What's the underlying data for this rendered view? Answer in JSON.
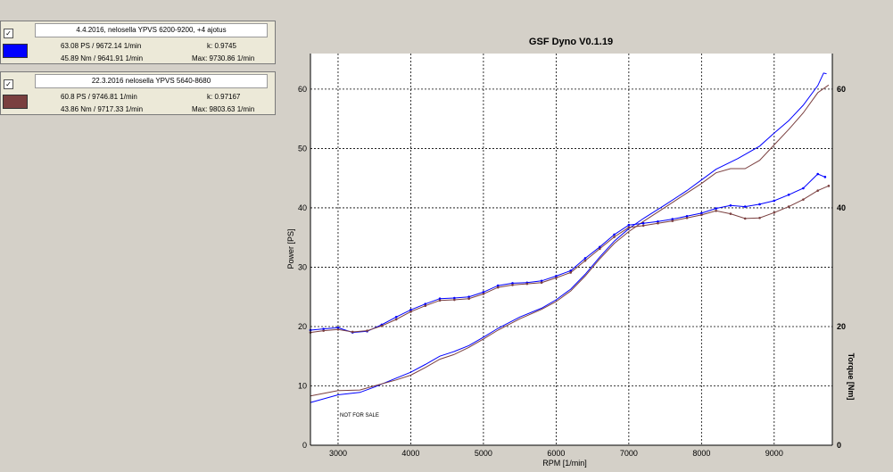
{
  "runs": [
    {
      "checked": "✓",
      "title": "4.4.2016, nelosella YPVS 6200-9200, +4 ajotus",
      "color": "#0000ff",
      "power_peak": "63.08 PS / 9672.14 1/min",
      "torque_peak": "45.89 Nm / 9641.91 1/min",
      "k_value": "k: 0.9745",
      "max_rpm": "Max: 9730.86 1/min"
    },
    {
      "checked": "✓",
      "title": "22.3.2016 nelosella YPVS 5640-8680",
      "color": "#7a3f3f",
      "power_peak": "60.8 PS / 9746.81 1/min",
      "torque_peak": "43.86 Nm / 9717.33 1/min",
      "k_value": "k: 0.97167",
      "max_rpm": "Max: 9803.63 1/min"
    }
  ],
  "chart_data": {
    "type": "line",
    "title": "GSF Dyno V0.1.19",
    "xlabel": "RPM [1/min]",
    "ylabel_left": "Power [PS]",
    "ylabel_right": "Torque [Nm]",
    "watermark": "NOT FOR SALE",
    "grid": true,
    "xlim": [
      2620,
      9800
    ],
    "ylim_left": [
      0,
      66
    ],
    "ylim_right": [
      0,
      66
    ],
    "x_ticks": [
      3000,
      4000,
      5000,
      6000,
      7000,
      8000,
      9000
    ],
    "y_ticks_left": [
      0,
      10,
      20,
      30,
      40,
      50,
      60
    ],
    "y_ticks_right": [
      0,
      20,
      40,
      60
    ],
    "series": [
      {
        "kind": "power",
        "axis": "left",
        "color": "#0000ff",
        "x": [
          2620,
          3000,
          3300,
          3500,
          3800,
          4000,
          4200,
          4400,
          4600,
          4800,
          5000,
          5200,
          5500,
          5800,
          6000,
          6200,
          6400,
          6600,
          6800,
          7000,
          7200,
          7500,
          7800,
          8000,
          8200,
          8500,
          8800,
          9000,
          9200,
          9400,
          9600,
          9680,
          9720
        ],
        "y": [
          7.2,
          8.5,
          8.9,
          9.8,
          11.3,
          12.3,
          13.6,
          15.0,
          15.8,
          16.8,
          18.2,
          19.7,
          21.6,
          23.1,
          24.5,
          26.3,
          28.8,
          31.7,
          34.4,
          36.5,
          38.2,
          40.5,
          42.9,
          44.7,
          46.5,
          48.3,
          50.4,
          52.6,
          54.7,
          57.3,
          60.6,
          62.7,
          62.6
        ]
      },
      {
        "kind": "power",
        "axis": "left",
        "color": "#7a3f3f",
        "x": [
          2620,
          3000,
          3300,
          3500,
          3800,
          4000,
          4200,
          4400,
          4600,
          4800,
          5000,
          5200,
          5500,
          5800,
          6000,
          6200,
          6400,
          6600,
          6800,
          7000,
          7200,
          7500,
          7800,
          8000,
          8200,
          8400,
          8600,
          8800,
          9000,
          9200,
          9400,
          9600,
          9750
        ],
        "y": [
          8.3,
          9.2,
          9.3,
          10.0,
          11.0,
          11.8,
          13.1,
          14.5,
          15.3,
          16.5,
          17.9,
          19.4,
          21.3,
          22.9,
          24.2,
          26.0,
          28.5,
          31.4,
          34.0,
          36.0,
          37.7,
          40.1,
          42.5,
          44.1,
          45.9,
          46.6,
          46.6,
          48.0,
          50.6,
          53.2,
          56.0,
          59.4,
          60.7
        ]
      },
      {
        "kind": "torque",
        "axis": "right",
        "color": "#0000ff",
        "x": [
          2620,
          2800,
          3000,
          3200,
          3400,
          3600,
          3800,
          4000,
          4200,
          4400,
          4600,
          4800,
          5000,
          5200,
          5400,
          5600,
          5800,
          6000,
          6200,
          6400,
          6600,
          6800,
          7000,
          7200,
          7400,
          7600,
          7800,
          8000,
          8200,
          8400,
          8600,
          8800,
          9000,
          9200,
          9400,
          9600,
          9700
        ],
        "y": [
          19.4,
          19.6,
          19.8,
          19.0,
          19.2,
          20.3,
          21.6,
          22.8,
          23.8,
          24.7,
          24.8,
          25.0,
          25.8,
          26.9,
          27.3,
          27.4,
          27.7,
          28.5,
          29.4,
          31.5,
          33.4,
          35.5,
          37.1,
          37.4,
          37.7,
          38.1,
          38.6,
          39.1,
          39.9,
          40.4,
          40.2,
          40.6,
          41.2,
          42.2,
          43.3,
          45.7,
          45.2
        ]
      },
      {
        "kind": "torque",
        "axis": "right",
        "color": "#7a3f3f",
        "x": [
          2620,
          2800,
          3000,
          3200,
          3400,
          3600,
          3800,
          4000,
          4200,
          4400,
          4600,
          4800,
          5000,
          5200,
          5400,
          5600,
          5800,
          6000,
          6200,
          6400,
          6600,
          6800,
          7000,
          7200,
          7400,
          7600,
          7800,
          8000,
          8200,
          8400,
          8600,
          8800,
          9000,
          9200,
          9400,
          9600,
          9750
        ],
        "y": [
          19.0,
          19.3,
          19.5,
          19.1,
          19.3,
          20.1,
          21.2,
          22.5,
          23.5,
          24.4,
          24.5,
          24.7,
          25.5,
          26.6,
          27.0,
          27.2,
          27.4,
          28.2,
          29.1,
          31.1,
          33.1,
          35.1,
          36.7,
          37.0,
          37.4,
          37.8,
          38.3,
          38.8,
          39.5,
          39.0,
          38.2,
          38.3,
          39.2,
          40.2,
          41.4,
          42.9,
          43.7
        ]
      }
    ]
  }
}
